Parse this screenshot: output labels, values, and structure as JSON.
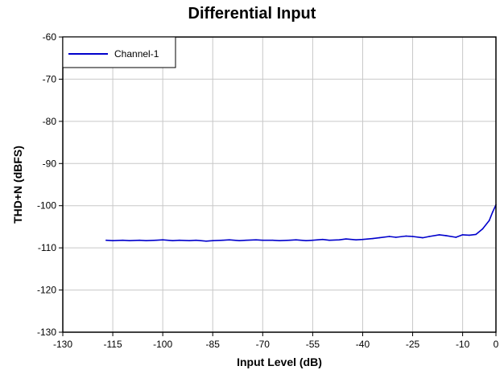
{
  "chart_data": {
    "type": "line",
    "title": "Differential Input",
    "xlabel": "Input Level (dB)",
    "ylabel": "THD+N (dBFS)",
    "xlim": [
      -130,
      0
    ],
    "ylim": [
      -130,
      -60
    ],
    "xticks": [
      -130,
      -115,
      -100,
      -85,
      -70,
      -55,
      -40,
      -25,
      -10,
      0
    ],
    "yticks": [
      -60,
      -70,
      -80,
      -90,
      -100,
      -110,
      -120,
      -130
    ],
    "grid": true,
    "legend_position": "top-left",
    "series": [
      {
        "name": "Channel-1",
        "color": "#0000cc",
        "x": [
          -117,
          -115,
          -112,
          -110,
          -107,
          -105,
          -102,
          -100,
          -97,
          -95,
          -92,
          -90,
          -87,
          -85,
          -82,
          -80,
          -77,
          -75,
          -72,
          -70,
          -67,
          -65,
          -62,
          -60,
          -57,
          -55,
          -52,
          -50,
          -47,
          -45,
          -42,
          -40,
          -37,
          -35,
          -32,
          -30,
          -27,
          -25,
          -22,
          -20,
          -17,
          -15,
          -12,
          -10,
          -8,
          -6,
          -4,
          -2,
          -1,
          0
        ],
        "y": [
          -108.2,
          -108.3,
          -108.2,
          -108.3,
          -108.2,
          -108.3,
          -108.2,
          -108.1,
          -108.3,
          -108.2,
          -108.3,
          -108.2,
          -108.4,
          -108.3,
          -108.2,
          -108.1,
          -108.3,
          -108.2,
          -108.1,
          -108.2,
          -108.2,
          -108.3,
          -108.2,
          -108.1,
          -108.3,
          -108.2,
          -108.0,
          -108.2,
          -108.1,
          -107.9,
          -108.1,
          -108.0,
          -107.8,
          -107.6,
          -107.3,
          -107.5,
          -107.2,
          -107.3,
          -107.6,
          -107.3,
          -106.9,
          -107.1,
          -107.5,
          -106.9,
          -107.0,
          -106.8,
          -105.5,
          -103.5,
          -101.5,
          -99.8
        ]
      }
    ]
  }
}
